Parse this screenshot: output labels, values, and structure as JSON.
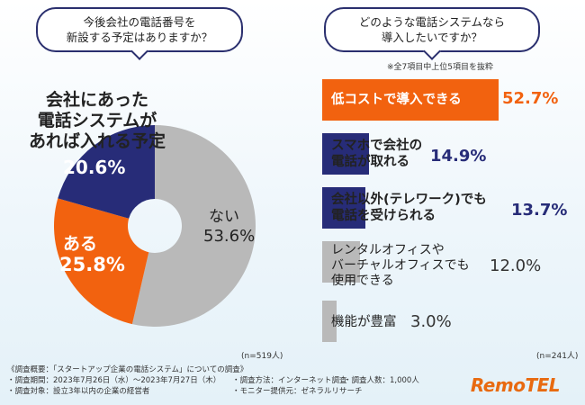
{
  "left": {
    "question_line1": "今後会社の電話番号を",
    "question_line2": "新設する予定はありますか？",
    "n_label": "(n=519人)"
  },
  "right": {
    "question_line1": "どのような電話システムなら",
    "question_line2": "導入したいですか？",
    "note": "※全7項目中上位5項目を抜粋",
    "n_label": "(n=241人)"
  },
  "pie_labels": {
    "yellow_line1": "会社にあった",
    "yellow_line2": "電話システムが",
    "yellow_line3": "あれば入れる予定",
    "yellow_value": "20.6%",
    "orange_label": "ある",
    "orange_value": "25.8%",
    "gray_label": "ない",
    "gray_value": "53.6%"
  },
  "bar_labels": [
    {
      "line1": "低コストで導入できる",
      "line2": "",
      "value": "52.7%"
    },
    {
      "line1": "スマホで会社の",
      "line2": "電話が取れる",
      "value": "14.9%"
    },
    {
      "line1": "会社以外(テレワーク)でも",
      "line2": "電話を受けられる",
      "value": "13.7%"
    },
    {
      "line1": "レンタルオフィスや",
      "line2": "バーチャルオフィスでも",
      "line3": "使用できる",
      "value": "12.0%"
    },
    {
      "line1": "機能が豊富",
      "line2": "",
      "value": "3.0%"
    }
  ],
  "footer": {
    "survey": "《調査概要：「スタートアップ企業の電話システム」についての調査》",
    "period": "・調査期間：2023年7月26日（水）〜2023年7月27日（木）",
    "method": "・調査方法：インターネット調査",
    "count": "・調査人数：1,000人",
    "target": "・調査対象：設立3年以内の企業の経営者",
    "provider": "・モニター提供元：ゼネラルリサーチ"
  },
  "logo": "RemoTEL",
  "colors": {
    "navy": "#272c78",
    "orange": "#f2620f",
    "gray": "#b9b9b9",
    "dark": "#2a2f6e"
  },
  "chart_data": [
    {
      "type": "pie",
      "title": "今後会社の電話番号を新設する予定はありますか？",
      "labels": [
        "会社にあった電話システムがあれば入れる予定",
        "ある",
        "ない"
      ],
      "values": [
        20.6,
        25.8,
        53.6
      ],
      "colors": [
        "#272c78",
        "#f2620f",
        "#b9b9b9"
      ],
      "n": "n=519人"
    },
    {
      "type": "bar",
      "title": "どのような電話システムなら導入したいですか？",
      "categories": [
        "低コストで導入できる",
        "スマホで会社の電話が取れる",
        "会社以外(テレワーク)でも電話を受けられる",
        "レンタルオフィスやバーチャルオフィスでも使用できる",
        "機能が豊富"
      ],
      "values": [
        52.7,
        14.9,
        13.7,
        12.0,
        3.0
      ],
      "colors": [
        "#f2620f",
        "#272c78",
        "#272c78",
        "#b9b9b9",
        "#b9b9b9"
      ],
      "xlim": [
        0,
        55
      ],
      "n": "n=241人"
    }
  ]
}
